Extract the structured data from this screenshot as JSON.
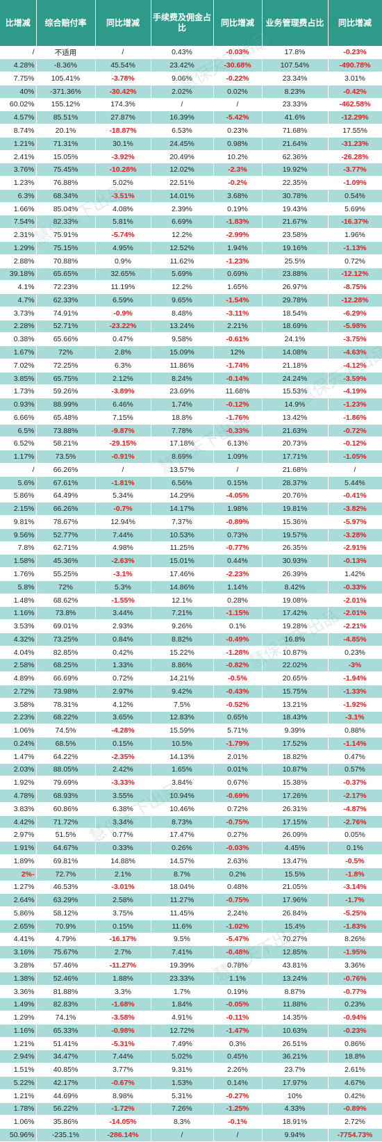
{
  "table": {
    "headers": [
      "比增减",
      "综合赔付率",
      "同比增减",
      "手续费及佣金占比",
      "同比增减",
      "业务管理费占比",
      "同比增减"
    ],
    "rows": [
      [
        "/",
        "不适用",
        "/",
        "0.43%",
        "-0.03%",
        "17.8%",
        "-0.23%"
      ],
      [
        "4.28%",
        "-8.36%",
        "45.54%",
        "23.42%",
        "-30.68%",
        "107.54%",
        "-490.78%"
      ],
      [
        "7.75%",
        "105.41%",
        "-3.78%",
        "9.06%",
        "-0.22%",
        "23.34%",
        "3.01%"
      ],
      [
        "40%",
        "-371.36%",
        "-30.42%",
        "2.02%",
        "0.02%",
        "8.23%",
        "-0.42%"
      ],
      [
        "60.02%",
        "155.12%",
        "174.3%",
        "/",
        "/",
        "23.33%",
        "-462.58%"
      ],
      [
        "4.57%",
        "85.51%",
        "27.87%",
        "16.39%",
        "-5.42%",
        "41.6%",
        "-12.29%"
      ],
      [
        "8.74%",
        "20.1%",
        "-18.87%",
        "6.53%",
        "0.23%",
        "71.68%",
        "17.55%"
      ],
      [
        "1.21%",
        "71.31%",
        "30.1%",
        "24.45%",
        "0.98%",
        "21.64%",
        "-31.23%"
      ],
      [
        "2.41%",
        "15.05%",
        "-3.92%",
        "20.49%",
        "10.2%",
        "62.36%",
        "-26.28%"
      ],
      [
        "3.76%",
        "75.45%",
        "-10.28%",
        "12.02%",
        "-2.3%",
        "19.92%",
        "-3.77%"
      ],
      [
        "1.23%",
        "76.88%",
        "5.02%",
        "22.51%",
        "-0.2%",
        "22.35%",
        "-1.09%"
      ],
      [
        "6.3%",
        "68.34%",
        "-3.51%",
        "14.01%",
        "3.68%",
        "30.78%",
        "0.54%"
      ],
      [
        "1.66%",
        "85.04%",
        "4.08%",
        "2.39%",
        "0.19%",
        "19.43%",
        "5.69%"
      ],
      [
        "7.54%",
        "82.33%",
        "5.81%",
        "6.69%",
        "-1.83%",
        "21.67%",
        "-16.37%"
      ],
      [
        "2.31%",
        "75.91%",
        "-5.74%",
        "12.2%",
        "-2.99%",
        "23.58%",
        "1.96%"
      ],
      [
        "1.29%",
        "75.15%",
        "4.95%",
        "12.52%",
        "1.94%",
        "19.16%",
        "-1.13%"
      ],
      [
        "2.88%",
        "70.88%",
        "0.9%",
        "11.62%",
        "-1.23%",
        "25.5%",
        "0.72%"
      ],
      [
        "39.18%",
        "65.65%",
        "32.65%",
        "5.69%",
        "0.69%",
        "23.88%",
        "-12.12%"
      ],
      [
        "4.1%",
        "72.23%",
        "11.19%",
        "12.2%",
        "1.65%",
        "26.97%",
        "-8.75%"
      ],
      [
        "4.7%",
        "62.33%",
        "6.59%",
        "9.65%",
        "-1.54%",
        "29.78%",
        "-12.28%"
      ],
      [
        "3.73%",
        "74.91%",
        "-0.9%",
        "8.48%",
        "-3.11%",
        "18.54%",
        "-6.29%"
      ],
      [
        "2.28%",
        "52.71%",
        "-23.22%",
        "13.24%",
        "2.21%",
        "18.69%",
        "-5.98%"
      ],
      [
        "0.38%",
        "65.66%",
        "0.47%",
        "9.58%",
        "-0.61%",
        "24.1%",
        "-3.75%"
      ],
      [
        "1.67%",
        "72%",
        "2.8%",
        "15.09%",
        "12%",
        "14.08%",
        "-4.63%"
      ],
      [
        "7.02%",
        "72.25%",
        "6.3%",
        "11.86%",
        "-1.74%",
        "21.18%",
        "-4.12%"
      ],
      [
        "3.85%",
        "65.75%",
        "2.12%",
        "8.24%",
        "-0.14%",
        "24.24%",
        "-3.59%"
      ],
      [
        "1.73%",
        "59.26%",
        "-3.89%",
        "23.69%",
        "11.68%",
        "15.53%",
        "-4.19%"
      ],
      [
        "0.93%",
        "88.99%",
        "6.46%",
        "1.74%",
        "-0.12%",
        "14.9%",
        "-1.23%"
      ],
      [
        "6.66%",
        "65.48%",
        "7.15%",
        "18.8%",
        "-1.76%",
        "13.42%",
        "-1.86%"
      ],
      [
        "6.5%",
        "73.88%",
        "-9.87%",
        "7.78%",
        "-0.33%",
        "21.63%",
        "-0.72%"
      ],
      [
        "6.52%",
        "58.21%",
        "-29.15%",
        "17.18%",
        "6.13%",
        "20.73%",
        "-0.12%"
      ],
      [
        "1.17%",
        "73.5%",
        "-0.91%",
        "8.69%",
        "1.09%",
        "17.71%",
        "-1.05%"
      ],
      [
        "/",
        "66.26%",
        "/",
        "13.57%",
        "/",
        "21.68%",
        "/"
      ],
      [
        "5.6%",
        "67.61%",
        "-1.81%",
        "6.56%",
        "0.15%",
        "28.37%",
        "5.44%"
      ],
      [
        "5.86%",
        "64.49%",
        "5.34%",
        "14.29%",
        "-4.05%",
        "20.76%",
        "-0.41%"
      ],
      [
        "2.15%",
        "66.26%",
        "-0.7%",
        "14.17%",
        "1.98%",
        "19.81%",
        "-3.82%"
      ],
      [
        "9.81%",
        "78.67%",
        "12.94%",
        "7.37%",
        "-0.89%",
        "15.36%",
        "-5.97%"
      ],
      [
        "9.56%",
        "52.77%",
        "7.44%",
        "10.53%",
        "0.73%",
        "19.57%",
        "-3.28%"
      ],
      [
        "7.8%",
        "62.71%",
        "4.98%",
        "11.25%",
        "-0.77%",
        "26.35%",
        "-2.91%"
      ],
      [
        "1.58%",
        "45.36%",
        "-2.63%",
        "15.01%",
        "0.44%",
        "30.93%",
        "-0.13%"
      ],
      [
        "1.76%",
        "55.25%",
        "-3.1%",
        "17.46%",
        "-2.23%",
        "26.39%",
        "1.42%"
      ],
      [
        "5.8%",
        "72%",
        "5.3%",
        "14.86%",
        "1.14%",
        "8.42%",
        "-0.33%"
      ],
      [
        "1.48%",
        "68.62%",
        "-1.55%",
        "12.1%",
        "0.28%",
        "19.08%",
        "-2.01%"
      ],
      [
        "1.16%",
        "73.8%",
        "3.44%",
        "7.21%",
        "-1.15%",
        "17.42%",
        "-2.01%"
      ],
      [
        "3.53%",
        "69.01%",
        "2.93%",
        "9.26%",
        "0.1%",
        "19.28%",
        "-2.21%"
      ],
      [
        "4.32%",
        "73.25%",
        "0.84%",
        "8.82%",
        "-0.49%",
        "16.8%",
        "-4.85%"
      ],
      [
        "4.04%",
        "82.85%",
        "0.42%",
        "15.22%",
        "-1.28%",
        "10.87%",
        "0.23%"
      ],
      [
        "2.58%",
        "68.25%",
        "1.33%",
        "8.86%",
        "-0.82%",
        "22.02%",
        "-3%"
      ],
      [
        "4.89%",
        "66.69%",
        "0.72%",
        "14.21%",
        "-0.5%",
        "20.65%",
        "-1.94%"
      ],
      [
        "2.72%",
        "73.98%",
        "2.97%",
        "9.42%",
        "-0.43%",
        "15.75%",
        "-1.33%"
      ],
      [
        "3.58%",
        "78.31%",
        "4.12%",
        "7.5%",
        "-0.52%",
        "13.21%",
        "-1.92%"
      ],
      [
        "2.23%",
        "68.22%",
        "3.65%",
        "12.83%",
        "0.65%",
        "18.43%",
        "-3.1%"
      ],
      [
        "1.06%",
        "74.5%",
        "-4.28%",
        "15.59%",
        "5.71%",
        "9.39%",
        "0.88%"
      ],
      [
        "0.24%",
        "68.5%",
        "0.15%",
        "10.5%",
        "-1.79%",
        "17.52%",
        "-1.14%"
      ],
      [
        "1.47%",
        "64.22%",
        "-2.35%",
        "14.13%",
        "2.01%",
        "18.82%",
        "0.47%"
      ],
      [
        "2.03%",
        "88.05%",
        "2.42%",
        "1.65%",
        "0.01%",
        "10.87%",
        "0.57%"
      ],
      [
        "1.92%",
        "79.69%",
        "-3.33%",
        "3.84%",
        "0.67%",
        "15.38%",
        "-0.37%"
      ],
      [
        "4.78%",
        "68.93%",
        "3.55%",
        "10.94%",
        "-0.69%",
        "17.26%",
        "-2.17%"
      ],
      [
        "3.83%",
        "60.86%",
        "6.38%",
        "10.46%",
        "0.72%",
        "26.31%",
        "-4.87%"
      ],
      [
        "4.42%",
        "71.72%",
        "3.34%",
        "8.73%",
        "-0.75%",
        "17.15%",
        "-2.76%"
      ],
      [
        "2.97%",
        "51.5%",
        "0.77%",
        "17.47%",
        "0.27%",
        "26.09%",
        "0.05%"
      ],
      [
        "1.91%",
        "64.67%",
        "0.33%",
        "0.26%",
        "-0.03%",
        "4.45%",
        "0.1%"
      ],
      [
        "1.89%",
        "69.81%",
        "14.88%",
        "14.57%",
        "2.63%",
        "13.47%",
        "-0.5%"
      ],
      [
        "-2%",
        "72.7%",
        "2.1%",
        "8.7%",
        "0.2%",
        "15.5%",
        "-1.8%"
      ],
      [
        "1.27%",
        "46.53%",
        "-3.01%",
        "18.04%",
        "0.48%",
        "21.05%",
        "-3.14%"
      ],
      [
        "2.64%",
        "63.29%",
        "2.58%",
        "11.27%",
        "-0.75%",
        "17.96%",
        "-1.7%"
      ],
      [
        "5.86%",
        "58.12%",
        "3.75%",
        "11.45%",
        "2.24%",
        "26.84%",
        "-5.25%"
      ],
      [
        "2.65%",
        "70.9%",
        "0.15%",
        "11.6%",
        "-1.02%",
        "15.4%",
        "-1.83%"
      ],
      [
        "4.41%",
        "4.79%",
        "-16.17%",
        "9.5%",
        "-5.47%",
        "70.27%",
        "8.26%"
      ],
      [
        "3.16%",
        "75.67%",
        "2.7%",
        "7.41%",
        "-0.48%",
        "12.85%",
        "-1.95%"
      ],
      [
        "3.28%",
        "57.46%",
        "-11.27%",
        "19.39%",
        "0.78%",
        "43.81%",
        "3.36%"
      ],
      [
        "1.38%",
        "52.46%",
        "1.88%",
        "23.33%",
        "1.1%",
        "13.24%",
        "-0.76%"
      ],
      [
        "3.36%",
        "81.88%",
        "3.3%",
        "1.7%",
        "0.19%",
        "8.87%",
        "-0.77%"
      ],
      [
        "1.49%",
        "82.83%",
        "-1.68%",
        "1.84%",
        "-0.05%",
        "11.88%",
        "0.23%"
      ],
      [
        "1.29%",
        "74.1%",
        "-3.58%",
        "4.91%",
        "-0.11%",
        "14.35%",
        "-0.94%"
      ],
      [
        "1.16%",
        "65.33%",
        "-0.98%",
        "12.72%",
        "-1.47%",
        "10.63%",
        "-0.23%"
      ],
      [
        "1.21%",
        "51.41%",
        "-5.31%",
        "7.49%",
        "0.3%",
        "26.51%",
        "0.86%"
      ],
      [
        "2.94%",
        "34.47%",
        "7.44%",
        "5.02%",
        "0.45%",
        "36.21%",
        "18.8%"
      ],
      [
        "1.51%",
        "40.85%",
        "3.77%",
        "9.31%",
        "2.26%",
        "23.7%",
        "2.61%"
      ],
      [
        "5.22%",
        "42.17%",
        "-0.67%",
        "1.53%",
        "0.14%",
        "17.97%",
        "4.67%"
      ],
      [
        "1.21%",
        "44.69%",
        "8.98%",
        "5.31%",
        "-0.27%",
        "10%",
        "0.42%"
      ],
      [
        "1.78%",
        "56.22%",
        "-1.72%",
        "7.26%",
        "-1.25%",
        "4.33%",
        "-0.89%"
      ],
      [
        "1.06%",
        "35.86%",
        "-14.05%",
        "8.3%",
        "-0.1%",
        "18.91%",
        "2.72%"
      ],
      [
        "50.96%",
        "-235.1%",
        "-286.14%",
        "/",
        "/",
        "9.94%",
        "-7754.73%"
      ]
    ],
    "negative_color": "#e02020",
    "header_color": "#2d9a8a",
    "stripe_color": "#a9dcd8"
  },
  "watermark": {
    "text": "慧保天下出品"
  }
}
